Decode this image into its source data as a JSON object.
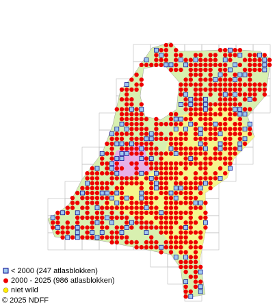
{
  "legend": {
    "items": [
      {
        "label": "< 2000   (247 atlasblokken)"
      },
      {
        "label": "2000 - 2025 (986 atlasblokken)"
      },
      {
        "label": "niet wild"
      }
    ]
  },
  "copyright": "© 2025 NDFF"
}
